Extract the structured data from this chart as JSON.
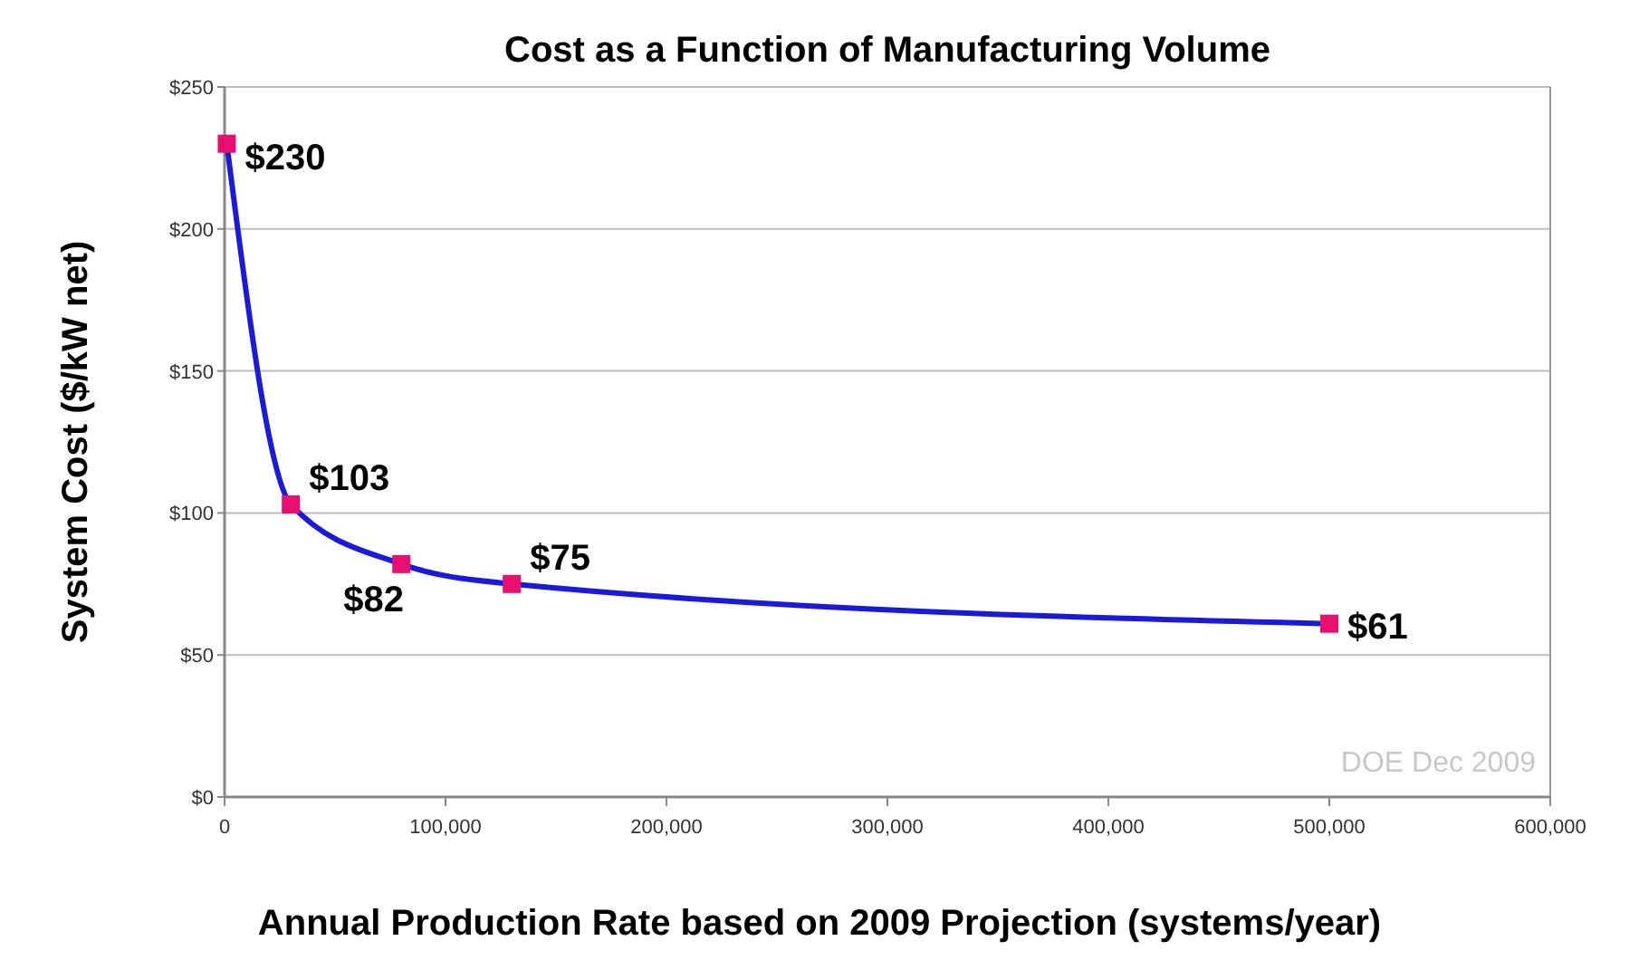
{
  "chart_data": {
    "type": "line",
    "title": "Cost as a Function of Manufacturing Volume",
    "xlabel": "Annual Production Rate based on 2009 Projection (systems/year)",
    "ylabel": "System Cost ($/kW net)",
    "x": [
      1000,
      30000,
      80000,
      130000,
      500000
    ],
    "series": [
      {
        "color": "#1a1ad8",
        "colors": [
          "#e8106e",
          "#e8106e",
          "#e8106e",
          "#e8106e",
          "#e8106e"
        ],
        "values": [
          230,
          103,
          82,
          75,
          61
        ],
        "value_labels": [
          "$230",
          "$103",
          "$82",
          "$75",
          "$61"
        ]
      }
    ],
    "xlim": [
      0,
      600000
    ],
    "xticks": [
      0,
      {
        "value": 100000,
        "label": "100,000"
      },
      {
        "value": 200000,
        "label": "200,000"
      },
      {
        "value": 300000,
        "label": "300,000"
      },
      {
        "value": 400000,
        "label": "400,000"
      },
      {
        "value": 500000,
        "label": "500,000"
      },
      {
        "value": 600000,
        "label": "600,000"
      }
    ],
    "ylim": [
      0,
      250
    ],
    "yticks": [
      {
        "value": 0,
        "label": "$0"
      },
      {
        "value": 50,
        "label": "$50"
      },
      {
        "value": 100,
        "label": "$100"
      },
      {
        "value": 150,
        "label": "$150"
      },
      {
        "value": 200,
        "label": "$200"
      },
      {
        "value": 250,
        "label": "$250"
      }
    ],
    "grid": "y",
    "marker": "square",
    "line_style": "solid",
    "annotations": [
      "DOE Dec 2009"
    ]
  }
}
